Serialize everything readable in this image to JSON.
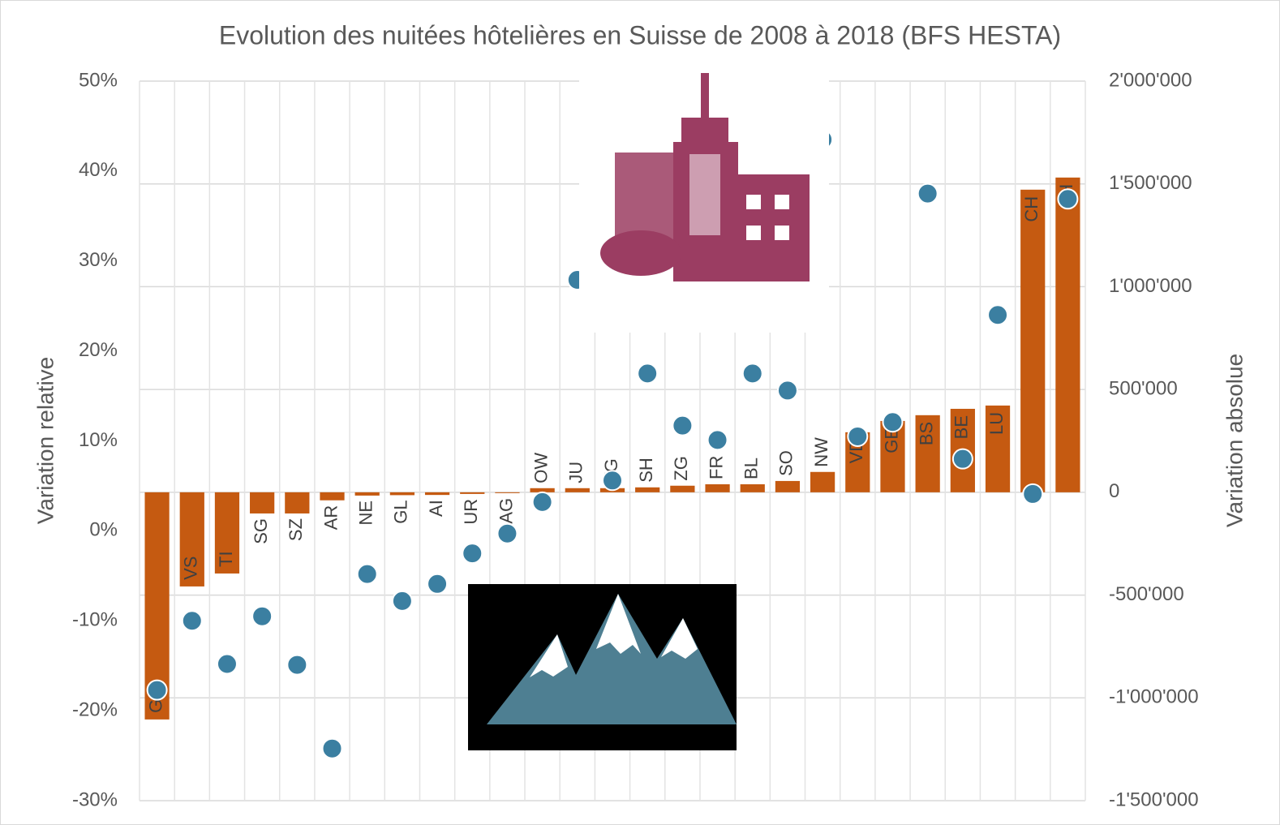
{
  "chart_data": {
    "type": "combo",
    "title": "Evolution des nuitées hôtelières en Suisse de 2008 à 2018 (BFS HESTA)",
    "ylabel": "Variation relative",
    "y2label": "Variation absolue",
    "categories": [
      "GR",
      "VS",
      "TI",
      "SG",
      "SZ",
      "AR",
      "NE",
      "GL",
      "AI",
      "UR",
      "AG",
      "OW",
      "JU",
      "TG",
      "SH",
      "ZG",
      "FR",
      "BL",
      "SO",
      "NW",
      "VD",
      "GE",
      "BS",
      "BE",
      "LU",
      "CH",
      "ZH"
    ],
    "series": [
      {
        "type": "bar",
        "axis": "y2",
        "color": "#c55a11",
        "values": [
          -1105000,
          -458000,
          -395000,
          -103000,
          -103000,
          -39000,
          -16000,
          -14000,
          -13000,
          -8000,
          -4000,
          20000,
          20000,
          20000,
          24000,
          32000,
          39000,
          39000,
          55000,
          99000,
          292000,
          347000,
          375000,
          406000,
          422000,
          1472000,
          1531000
        ]
      },
      {
        "type": "scatter",
        "axis": "y",
        "color": "#3b7fa1",
        "values": [
          -17.7,
          -10.0,
          -14.8,
          -9.5,
          -14.9,
          -24.2,
          -4.8,
          -7.8,
          -5.9,
          -2.5,
          -0.3,
          3.2,
          27.9,
          5.6,
          17.5,
          11.7,
          10.1,
          17.5,
          15.6,
          43.5,
          10.5,
          12.1,
          37.5,
          8.0,
          24.0,
          4.1,
          36.9
        ]
      }
    ],
    "ylim": [
      -30,
      50
    ],
    "yticks": [
      {
        "value": -30,
        "label": "-30%"
      },
      {
        "value": -20,
        "label": "-20%"
      },
      {
        "value": -10,
        "label": "-10%"
      },
      {
        "value": 0,
        "label": "0%"
      },
      {
        "value": 10,
        "label": "10%"
      },
      {
        "value": 20,
        "label": "20%"
      },
      {
        "value": 30,
        "label": "30%"
      },
      {
        "value": 40,
        "label": "40%"
      },
      {
        "value": 50,
        "label": "50%"
      }
    ],
    "y2lim": [
      -1500000,
      2000000
    ],
    "y2ticks": [
      {
        "value": -1500000,
        "label": "-1'500'000"
      },
      {
        "value": -1000000,
        "label": "-1'000'000"
      },
      {
        "value": -500000,
        "label": "-500'000"
      },
      0,
      {
        "value": 500000,
        "label": "500'000"
      },
      {
        "value": 1000000,
        "label": "1'000'000"
      },
      {
        "value": 1500000,
        "label": "1'500'000"
      },
      {
        "value": 2000000,
        "label": "2'000'000"
      }
    ],
    "grid": true
  }
}
